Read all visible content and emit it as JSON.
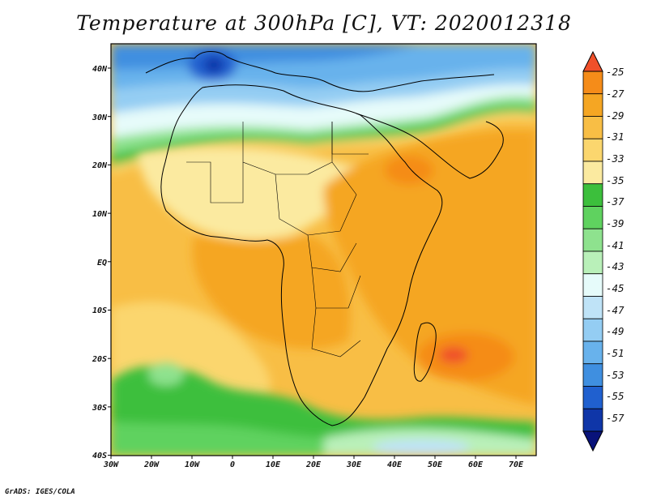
{
  "title": "Temperature at 300hPa [C], VT: 2020012318",
  "credit": "GrADS: IGES/COLA",
  "map": {
    "variable": "Temperature",
    "level": "300hPa",
    "units": "C",
    "valid_time": "2020012318",
    "lon_range": [
      -30,
      75
    ],
    "lat_range": [
      -40,
      45
    ],
    "lon_ticks": [
      "30W",
      "20W",
      "10W",
      "0",
      "10E",
      "20E",
      "30E",
      "40E",
      "50E",
      "60E",
      "70E"
    ],
    "lat_ticks": [
      "40N",
      "30N",
      "20N",
      "10N",
      "EQ",
      "10S",
      "20S",
      "30S",
      "40S"
    ]
  },
  "colorbar": {
    "labels": [
      "-25",
      "-27",
      "-29",
      "-31",
      "-33",
      "-35",
      "-37",
      "-39",
      "-41",
      "-43",
      "-45",
      "-47",
      "-49",
      "-51",
      "-53",
      "-55",
      "-57"
    ],
    "colors": [
      "#f0502a",
      "#f58c19",
      "#f5a623",
      "#f8be45",
      "#fbd66e",
      "#fbeaa0",
      "#3cbf3c",
      "#5fd25f",
      "#8ee28e",
      "#b9f0b9",
      "#e6fbfa",
      "#bfe3f7",
      "#94cdf3",
      "#68b2ec",
      "#3f8fe0",
      "#2060cf",
      "#0f36a8",
      "#09137a"
    ]
  }
}
